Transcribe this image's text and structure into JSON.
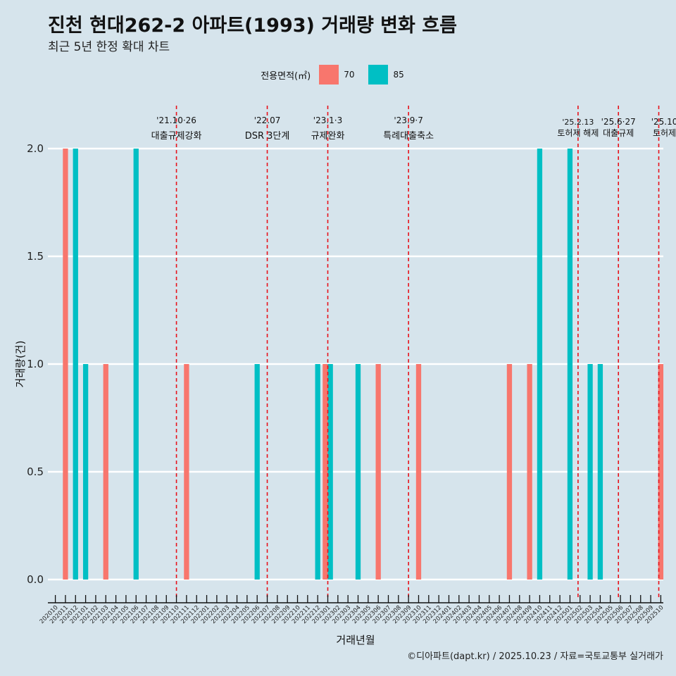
{
  "title": "진천 현대262-2 아파트(1993) 거래량 변화 흐름",
  "subtitle": "최근 5년 한정 확대 차트",
  "caption": "©디아파트(dapt.kr) / 2025.10.23 / 자료=국토교통부 실거래가",
  "legend": {
    "title": "전용면적(㎡)",
    "items": [
      {
        "label": "70",
        "color": "#f8766d"
      },
      {
        "label": "85",
        "color": "#00bfc4"
      }
    ]
  },
  "chart_data": {
    "type": "bar",
    "title": "진천 현대262-2 아파트(1993) 거래량 변화 흐름",
    "xlabel": "거래년월",
    "ylabel": "거래량(건)",
    "ylim": [
      0,
      2
    ],
    "yticks": [
      "0.0",
      "0.5",
      "1.0",
      "1.5",
      "2.0"
    ],
    "categories": [
      "202010",
      "202011",
      "202012",
      "202101",
      "202102",
      "202103",
      "202104",
      "202105",
      "202106",
      "202107",
      "202108",
      "202109",
      "202110",
      "202111",
      "202112",
      "202201",
      "202202",
      "202203",
      "202204",
      "202205",
      "202206",
      "202207",
      "202208",
      "202209",
      "202210",
      "202211",
      "202212",
      "202301",
      "202302",
      "202303",
      "202304",
      "202305",
      "202306",
      "202307",
      "202308",
      "202309",
      "202310",
      "202311",
      "202312",
      "202401",
      "202402",
      "202403",
      "202404",
      "202405",
      "202406",
      "202407",
      "202408",
      "202409",
      "202410",
      "202411",
      "202412",
      "202501",
      "202502",
      "202503",
      "202504",
      "202505",
      "202506",
      "202507",
      "202508",
      "202509",
      "202510"
    ],
    "series": [
      {
        "name": "70",
        "color": "#f8766d",
        "values": [
          0,
          2,
          0,
          0,
          0,
          1,
          0,
          0,
          0,
          0,
          0,
          0,
          0,
          1,
          0,
          0,
          0,
          0,
          0,
          0,
          0,
          0,
          0,
          0,
          0,
          0,
          0,
          1,
          0,
          0,
          0,
          0,
          1,
          0,
          0,
          0,
          1,
          0,
          0,
          0,
          0,
          0,
          0,
          0,
          0,
          1,
          0,
          1,
          0,
          0,
          0,
          0,
          0,
          0,
          0,
          0,
          0,
          0,
          0,
          0,
          1
        ]
      },
      {
        "name": "85",
        "color": "#00bfc4",
        "values": [
          0,
          0,
          2,
          1,
          0,
          0,
          0,
          0,
          2,
          0,
          0,
          0,
          0,
          0,
          0,
          0,
          0,
          0,
          0,
          0,
          1,
          0,
          0,
          0,
          0,
          0,
          1,
          1,
          0,
          0,
          1,
          0,
          0,
          0,
          0,
          0,
          0,
          0,
          0,
          0,
          0,
          0,
          0,
          0,
          0,
          0,
          0,
          0,
          2,
          0,
          0,
          2,
          0,
          1,
          1,
          0,
          0,
          0,
          0,
          0,
          0
        ]
      }
    ],
    "events": [
      {
        "date": "'21.10·26",
        "label": "대출규제강화"
      },
      {
        "date": "'22.07",
        "label": "DSR 3단계"
      },
      {
        "date": "'23.1·3",
        "label": "규제완화"
      },
      {
        "date": "'23.9·7",
        "label": "특례대출축소"
      },
      {
        "date": "'25.2.13",
        "label": "토허제 해제"
      },
      {
        "date": "'25.6·27",
        "label": "대출규제"
      },
      {
        "date": "'25.10",
        "label": "토허제"
      }
    ]
  }
}
